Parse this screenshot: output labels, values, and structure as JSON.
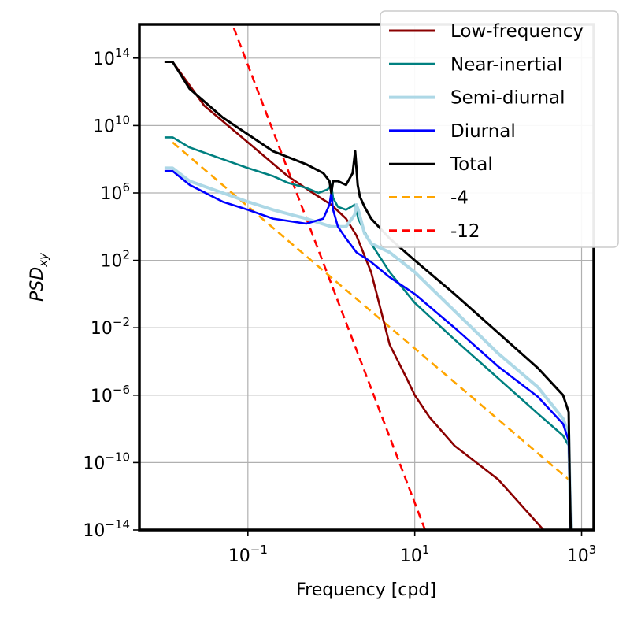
{
  "chart_data": {
    "type": "line",
    "xscale": "log",
    "yscale": "log",
    "xlabel": "Frequency [cpd]",
    "ylabel_base": "PSD",
    "ylabel_sub": "xy",
    "xlim": [
      0.005,
      1400
    ],
    "ylim": [
      1e-14,
      1e+16
    ],
    "x_ticks": [
      {
        "base": "10",
        "exp": "−1",
        "value": 0.1
      },
      {
        "base": "10",
        "exp": "1",
        "value": 10
      },
      {
        "base": "10",
        "exp": "3",
        "value": 1000
      }
    ],
    "y_ticks": [
      {
        "base": "10",
        "exp": "14",
        "value": 100000000000000.0
      },
      {
        "base": "10",
        "exp": "10",
        "value": 10000000000.0
      },
      {
        "base": "10",
        "exp": "6",
        "value": 1000000.0
      },
      {
        "base": "10",
        "exp": "2",
        "value": 100.0
      },
      {
        "base": "10",
        "exp": "−2",
        "value": 0.01
      },
      {
        "base": "10",
        "exp": "−6",
        "value": 1e-06
      },
      {
        "base": "10",
        "exp": "−10",
        "value": 1e-10
      },
      {
        "base": "10",
        "exp": "−14",
        "value": 1e-14
      }
    ],
    "grid": true,
    "legend_position": "top-right",
    "series": [
      {
        "name": "Low-frequency",
        "color": "#8b0000",
        "style": "solid",
        "x": [
          0.01,
          0.0125,
          0.03,
          0.1,
          0.3,
          0.6,
          1.0,
          1.5,
          2.0,
          3.0,
          5.0,
          8.0,
          10.0,
          15.0,
          30.0,
          100.0,
          350.0
        ],
        "y": [
          60000000000000.0,
          60000000000000.0,
          150000000000.0,
          1000000000.0,
          10000000.0,
          1000000.0,
          200000.0,
          30000.0,
          3000.0,
          20.0,
          0.001,
          1e-05,
          1e-06,
          5e-08,
          1e-09,
          1e-11,
          1e-14
        ]
      },
      {
        "name": "Near-inertial",
        "color": "#008080",
        "style": "solid",
        "x": [
          0.01,
          0.0125,
          0.02,
          0.05,
          0.1,
          0.2,
          0.3,
          0.5,
          0.7,
          0.9,
          1.0,
          1.05,
          1.2,
          1.5,
          1.9,
          2.0,
          2.1,
          2.5,
          3.0,
          5.0,
          10.0,
          30.0,
          100.0,
          300.0,
          600.0,
          700.0,
          720.0,
          740.0
        ],
        "y": [
          2000000000.0,
          2000000000.0,
          500000000.0,
          100000000.0,
          30000000.0,
          10000000.0,
          4000000.0,
          2000000.0,
          1000000.0,
          1600000.0,
          3000000.0,
          500000.0,
          150000.0,
          100000.0,
          200000.0,
          100000.0,
          30000.0,
          5000.0,
          1000.0,
          20.0,
          0.3,
          0.002,
          1e-05,
          8e-08,
          4e-09,
          1e-09,
          1e-11,
          1e-14
        ]
      },
      {
        "name": "Semi-diurnal",
        "color": "#add8e6",
        "style": "solid",
        "x": [
          0.01,
          0.0125,
          0.02,
          0.05,
          0.1,
          0.2,
          0.5,
          1.0,
          1.5,
          1.9,
          2.0,
          2.1,
          2.5,
          3.0,
          5.0,
          10.0,
          30.0,
          100.0,
          300.0,
          600.0,
          700.0,
          720.0,
          740.0
        ],
        "y": [
          30000000.0,
          30000000.0,
          5000000.0,
          1000000.0,
          300000.0,
          100000.0,
          30000.0,
          10000.0,
          10000.0,
          50000.0,
          200000.0,
          100000.0,
          4000.0,
          1000.0,
          300.0,
          20.0,
          0.1,
          0.0003,
          3e-06,
          4e-08,
          5e-09,
          1e-11,
          1e-14
        ]
      },
      {
        "name": "Diurnal",
        "color": "#0000ff",
        "style": "solid",
        "x": [
          0.01,
          0.0125,
          0.02,
          0.05,
          0.1,
          0.2,
          0.5,
          0.8,
          0.95,
          1.0,
          1.05,
          1.2,
          1.5,
          2.0,
          3.0,
          5.0,
          10.0,
          30.0,
          100.0,
          300.0,
          600.0,
          700.0,
          720.0,
          740.0
        ],
        "y": [
          20000000.0,
          20000000.0,
          3000000.0,
          300000.0,
          100000.0,
          30000.0,
          15000.0,
          30000.0,
          200000.0,
          1000000.0,
          100000.0,
          10000.0,
          2000.0,
          300.0,
          80.0,
          10.0,
          1.0,
          0.01,
          5e-05,
          8e-07,
          2e-08,
          2e-09,
          1e-11,
          1e-14
        ]
      },
      {
        "name": "Total",
        "color": "#000000",
        "style": "solid",
        "x": [
          0.01,
          0.0125,
          0.02,
          0.05,
          0.1,
          0.2,
          0.5,
          0.8,
          0.95,
          1.0,
          1.05,
          1.2,
          1.5,
          1.8,
          1.93,
          2.0,
          2.07,
          2.2,
          2.5,
          3.0,
          5.0,
          10.0,
          30.0,
          100.0,
          300.0,
          600.0,
          700.0,
          720.0,
          740.0
        ],
        "y": [
          60000000000000.0,
          60000000000000.0,
          1500000000000.0,
          30000000000.0,
          3000000000.0,
          300000000.0,
          50000000.0,
          15000000.0,
          5000000.0,
          1000000.0,
          5000000.0,
          5000000.0,
          3000000.0,
          15000000.0,
          300000000.0,
          30000000.0,
          3000000.0,
          600000.0,
          150000.0,
          30000.0,
          2000.0,
          100.0,
          1.0,
          0.005,
          4e-05,
          1e-06,
          1e-07,
          1e-11,
          1e-14
        ]
      },
      {
        "name": "-4",
        "color": "#ffa500",
        "style": "dashed",
        "x": [
          0.0125,
          700.0
        ],
        "y": [
          1000000000.0,
          1e-11
        ]
      },
      {
        "name": "-12",
        "color": "#ff0000",
        "style": "dashed",
        "x": [
          0.06,
          13.3
        ],
        "y": [
          3e+16,
          1e-14
        ]
      }
    ]
  }
}
